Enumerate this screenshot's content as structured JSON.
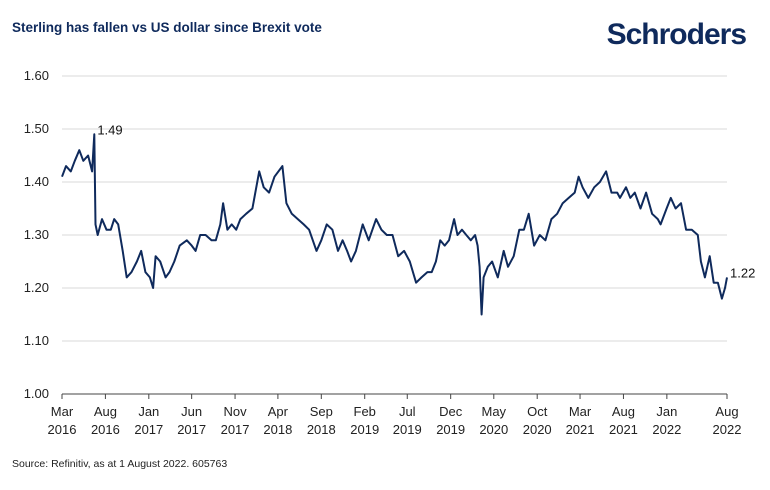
{
  "title": "Sterling has fallen vs US dollar since Brexit vote",
  "logo_text": "Schroders",
  "source": "Source: Refinitiv, as at 1 August 2022. 605763",
  "colors": {
    "line": "#0f2a5c",
    "grid": "#d9d9d9",
    "axis": "#444444"
  },
  "chart_data": {
    "type": "line",
    "title": "Sterling has fallen vs US dollar since Brexit vote",
    "xlabel": "",
    "ylabel": "",
    "ylim": [
      1.0,
      1.6
    ],
    "xlim": [
      "2016-03-01",
      "2022-08-01"
    ],
    "grid": true,
    "yticks": [
      {
        "value": 1.0,
        "label": "1.00"
      },
      {
        "value": 1.1,
        "label": "1.10"
      },
      {
        "value": 1.2,
        "label": "1.20"
      },
      {
        "value": 1.3,
        "label": "1.30"
      },
      {
        "value": 1.4,
        "label": "1.40"
      },
      {
        "value": 1.5,
        "label": "1.50"
      },
      {
        "value": 1.6,
        "label": "1.60"
      }
    ],
    "xticks": [
      {
        "date": "2016-03-01",
        "line1": "Mar",
        "line2": "2016"
      },
      {
        "date": "2016-08-01",
        "line1": "Aug",
        "line2": "2016"
      },
      {
        "date": "2017-01-01",
        "line1": "Jan",
        "line2": "2017"
      },
      {
        "date": "2017-06-01",
        "line1": "Jun",
        "line2": "2017"
      },
      {
        "date": "2017-11-01",
        "line1": "Nov",
        "line2": "2017"
      },
      {
        "date": "2018-04-01",
        "line1": "Apr",
        "line2": "2018"
      },
      {
        "date": "2018-09-01",
        "line1": "Sep",
        "line2": "2018"
      },
      {
        "date": "2019-02-01",
        "line1": "Feb",
        "line2": "2019"
      },
      {
        "date": "2019-07-01",
        "line1": "Jul",
        "line2": "2019"
      },
      {
        "date": "2019-12-01",
        "line1": "Dec",
        "line2": "2019"
      },
      {
        "date": "2020-05-01",
        "line1": "May",
        "line2": "2020"
      },
      {
        "date": "2020-10-01",
        "line1": "Oct",
        "line2": "2020"
      },
      {
        "date": "2021-03-01",
        "line1": "Mar",
        "line2": "2021"
      },
      {
        "date": "2021-08-01",
        "line1": "Aug",
        "line2": "2021"
      },
      {
        "date": "2022-01-01",
        "line1": "Jan",
        "line2": "2022"
      },
      {
        "date": "2022-08-01",
        "line1": "Aug",
        "line2": "2022"
      }
    ],
    "annotations": [
      {
        "label": "1.49",
        "date": "2016-06-23",
        "value": 1.49
      },
      {
        "label": "1.22",
        "date": "2022-08-01",
        "value": 1.22
      }
    ],
    "series": [
      {
        "points": [
          [
            "2016-03-01",
            1.41
          ],
          [
            "2016-03-15",
            1.43
          ],
          [
            "2016-04-01",
            1.42
          ],
          [
            "2016-04-15",
            1.44
          ],
          [
            "2016-05-01",
            1.46
          ],
          [
            "2016-05-15",
            1.44
          ],
          [
            "2016-06-01",
            1.45
          ],
          [
            "2016-06-15",
            1.42
          ],
          [
            "2016-06-23",
            1.49
          ],
          [
            "2016-06-27",
            1.32
          ],
          [
            "2016-07-05",
            1.3
          ],
          [
            "2016-07-20",
            1.33
          ],
          [
            "2016-08-05",
            1.31
          ],
          [
            "2016-08-20",
            1.31
          ],
          [
            "2016-09-01",
            1.33
          ],
          [
            "2016-09-15",
            1.32
          ],
          [
            "2016-10-01",
            1.27
          ],
          [
            "2016-10-15",
            1.22
          ],
          [
            "2016-11-01",
            1.23
          ],
          [
            "2016-11-20",
            1.25
          ],
          [
            "2016-12-05",
            1.27
          ],
          [
            "2016-12-20",
            1.23
          ],
          [
            "2017-01-05",
            1.22
          ],
          [
            "2017-01-16",
            1.2
          ],
          [
            "2017-01-25",
            1.26
          ],
          [
            "2017-02-10",
            1.25
          ],
          [
            "2017-03-01",
            1.22
          ],
          [
            "2017-03-15",
            1.23
          ],
          [
            "2017-04-01",
            1.25
          ],
          [
            "2017-04-20",
            1.28
          ],
          [
            "2017-05-15",
            1.29
          ],
          [
            "2017-06-01",
            1.28
          ],
          [
            "2017-06-15",
            1.27
          ],
          [
            "2017-07-01",
            1.3
          ],
          [
            "2017-07-20",
            1.3
          ],
          [
            "2017-08-10",
            1.29
          ],
          [
            "2017-08-25",
            1.29
          ],
          [
            "2017-09-10",
            1.32
          ],
          [
            "2017-09-20",
            1.36
          ],
          [
            "2017-10-05",
            1.31
          ],
          [
            "2017-10-20",
            1.32
          ],
          [
            "2017-11-05",
            1.31
          ],
          [
            "2017-11-20",
            1.33
          ],
          [
            "2017-12-10",
            1.34
          ],
          [
            "2018-01-01",
            1.35
          ],
          [
            "2018-01-25",
            1.42
          ],
          [
            "2018-02-10",
            1.39
          ],
          [
            "2018-03-01",
            1.38
          ],
          [
            "2018-03-20",
            1.41
          ],
          [
            "2018-04-17",
            1.43
          ],
          [
            "2018-05-01",
            1.36
          ],
          [
            "2018-05-20",
            1.34
          ],
          [
            "2018-06-10",
            1.33
          ],
          [
            "2018-07-01",
            1.32
          ],
          [
            "2018-07-20",
            1.31
          ],
          [
            "2018-08-15",
            1.27
          ],
          [
            "2018-09-01",
            1.29
          ],
          [
            "2018-09-20",
            1.32
          ],
          [
            "2018-10-10",
            1.31
          ],
          [
            "2018-10-30",
            1.27
          ],
          [
            "2018-11-15",
            1.29
          ],
          [
            "2018-12-01",
            1.27
          ],
          [
            "2018-12-15",
            1.25
          ],
          [
            "2019-01-01",
            1.27
          ],
          [
            "2019-01-25",
            1.32
          ],
          [
            "2019-02-15",
            1.29
          ],
          [
            "2019-03-13",
            1.33
          ],
          [
            "2019-04-01",
            1.31
          ],
          [
            "2019-04-20",
            1.3
          ],
          [
            "2019-05-10",
            1.3
          ],
          [
            "2019-05-30",
            1.26
          ],
          [
            "2019-06-20",
            1.27
          ],
          [
            "2019-07-10",
            1.25
          ],
          [
            "2019-08-01",
            1.21
          ],
          [
            "2019-08-20",
            1.22
          ],
          [
            "2019-09-10",
            1.23
          ],
          [
            "2019-09-25",
            1.23
          ],
          [
            "2019-10-10",
            1.25
          ],
          [
            "2019-10-25",
            1.29
          ],
          [
            "2019-11-10",
            1.28
          ],
          [
            "2019-11-25",
            1.29
          ],
          [
            "2019-12-13",
            1.33
          ],
          [
            "2019-12-25",
            1.3
          ],
          [
            "2020-01-10",
            1.31
          ],
          [
            "2020-01-25",
            1.3
          ],
          [
            "2020-02-10",
            1.29
          ],
          [
            "2020-02-25",
            1.3
          ],
          [
            "2020-03-05",
            1.28
          ],
          [
            "2020-03-12",
            1.24
          ],
          [
            "2020-03-19",
            1.15
          ],
          [
            "2020-03-26",
            1.22
          ],
          [
            "2020-04-10",
            1.24
          ],
          [
            "2020-04-25",
            1.25
          ],
          [
            "2020-05-15",
            1.22
          ],
          [
            "2020-06-05",
            1.27
          ],
          [
            "2020-06-20",
            1.24
          ],
          [
            "2020-07-10",
            1.26
          ],
          [
            "2020-07-30",
            1.31
          ],
          [
            "2020-08-15",
            1.31
          ],
          [
            "2020-09-01",
            1.34
          ],
          [
            "2020-09-20",
            1.28
          ],
          [
            "2020-10-10",
            1.3
          ],
          [
            "2020-10-30",
            1.29
          ],
          [
            "2020-11-20",
            1.33
          ],
          [
            "2020-12-10",
            1.34
          ],
          [
            "2020-12-30",
            1.36
          ],
          [
            "2021-01-20",
            1.37
          ],
          [
            "2021-02-10",
            1.38
          ],
          [
            "2021-02-24",
            1.41
          ],
          [
            "2021-03-10",
            1.39
          ],
          [
            "2021-03-30",
            1.37
          ],
          [
            "2021-04-20",
            1.39
          ],
          [
            "2021-05-10",
            1.4
          ],
          [
            "2021-06-01",
            1.42
          ],
          [
            "2021-06-20",
            1.38
          ],
          [
            "2021-07-10",
            1.38
          ],
          [
            "2021-07-20",
            1.37
          ],
          [
            "2021-08-10",
            1.39
          ],
          [
            "2021-08-25",
            1.37
          ],
          [
            "2021-09-10",
            1.38
          ],
          [
            "2021-09-30",
            1.35
          ],
          [
            "2021-10-20",
            1.38
          ],
          [
            "2021-11-10",
            1.34
          ],
          [
            "2021-11-30",
            1.33
          ],
          [
            "2021-12-10",
            1.32
          ],
          [
            "2021-12-31",
            1.35
          ],
          [
            "2022-01-15",
            1.37
          ],
          [
            "2022-02-01",
            1.35
          ],
          [
            "2022-02-20",
            1.36
          ],
          [
            "2022-03-10",
            1.31
          ],
          [
            "2022-03-30",
            1.31
          ],
          [
            "2022-04-20",
            1.3
          ],
          [
            "2022-05-01",
            1.25
          ],
          [
            "2022-05-15",
            1.22
          ],
          [
            "2022-06-01",
            1.26
          ],
          [
            "2022-06-15",
            1.21
          ],
          [
            "2022-06-30",
            1.21
          ],
          [
            "2022-07-14",
            1.18
          ],
          [
            "2022-07-25",
            1.2
          ],
          [
            "2022-08-01",
            1.22
          ]
        ]
      }
    ]
  }
}
